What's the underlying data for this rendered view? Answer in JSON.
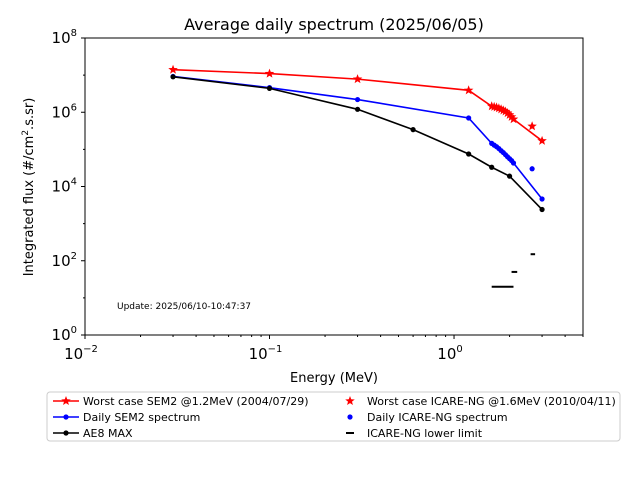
{
  "chart_data": {
    "type": "line",
    "title": "Average daily spectrum (2025/06/05)",
    "xlabel": "Energy (MeV)",
    "ylabel_main": "Integrated flux (#/cm",
    "ylabel_sup": "2",
    "ylabel_tail": ".s.sr)",
    "xscale": "log",
    "yscale": "log",
    "xlim": [
      0.01,
      5
    ],
    "ylim": [
      1,
      100000000
    ],
    "grid": false,
    "legend_position": "bottom",
    "x_ticks": [
      {
        "value": 0.01,
        "base": "10",
        "exp": "−2"
      },
      {
        "value": 0.1,
        "base": "10",
        "exp": "−1"
      },
      {
        "value": 1,
        "base": "10",
        "exp": "0"
      }
    ],
    "y_ticks": [
      {
        "value": 1,
        "base": "10",
        "exp": "0"
      },
      {
        "value": 100,
        "base": "10",
        "exp": "2"
      },
      {
        "value": 10000,
        "base": "10",
        "exp": "4"
      },
      {
        "value": 1000000,
        "base": "10",
        "exp": "6"
      },
      {
        "value": 100000000,
        "base": "10",
        "exp": "8"
      }
    ],
    "annotation": "Update: 2025/06/10-10:47:37",
    "series": [
      {
        "name": "Worst case SEM2 @1.2MeV (2004/07/29)",
        "color": "#ff0000",
        "marker": "star",
        "line": true,
        "x": [
          0.03,
          0.1,
          0.3,
          1.2,
          1.6,
          1.65,
          1.7,
          1.75,
          1.8,
          1.85,
          1.9,
          1.95,
          2.0,
          2.05,
          2.1,
          3.0
        ],
        "y": [
          14000000,
          11000000,
          7800000,
          3900000,
          1450000,
          1400000,
          1350000,
          1280000,
          1200000,
          1120000,
          1050000,
          950000,
          850000,
          750000,
          650000,
          170000
        ]
      },
      {
        "name": "Daily SEM2 spectrum",
        "color": "#0000ff",
        "marker": "dot",
        "line": true,
        "x": [
          0.03,
          0.1,
          0.3,
          1.2,
          1.6,
          1.65,
          1.7,
          1.75,
          1.8,
          1.85,
          1.9,
          1.95,
          2.0,
          2.05,
          2.1,
          3.0
        ],
        "y": [
          9200000,
          4600000,
          2200000,
          700000,
          145000,
          130000,
          118000,
          105000,
          92000,
          82000,
          72000,
          63000,
          56000,
          50000,
          43000,
          4600
        ]
      },
      {
        "name": "AE8 MAX",
        "color": "#000000",
        "marker": "dot",
        "line": true,
        "x": [
          0.03,
          0.1,
          0.3,
          0.6,
          1.2,
          1.6,
          2.0,
          3.0
        ],
        "y": [
          9000000,
          4400000,
          1200000,
          340000,
          75000,
          33000,
          19000,
          2400
        ]
      },
      {
        "name": "Worst case ICARE-NG @1.6MeV (2010/04/11)",
        "color": "#ff0000",
        "marker": "star",
        "line": false,
        "x": [
          2.65
        ],
        "y": [
          420000
        ]
      },
      {
        "name": "Daily ICARE-NG spectrum",
        "color": "#0000ff",
        "marker": "dot",
        "line": false,
        "x": [
          2.65
        ],
        "y": [
          30000
        ]
      },
      {
        "name": "ICARE-NG lower limit",
        "color": "#000000",
        "marker": "hline",
        "line": false,
        "segments": [
          {
            "x0": 1.6,
            "x1": 2.1,
            "y": 20
          },
          {
            "x0": 2.05,
            "x1": 2.2,
            "y": 50
          },
          {
            "x0": 2.6,
            "x1": 2.75,
            "y": 150
          }
        ]
      }
    ]
  }
}
